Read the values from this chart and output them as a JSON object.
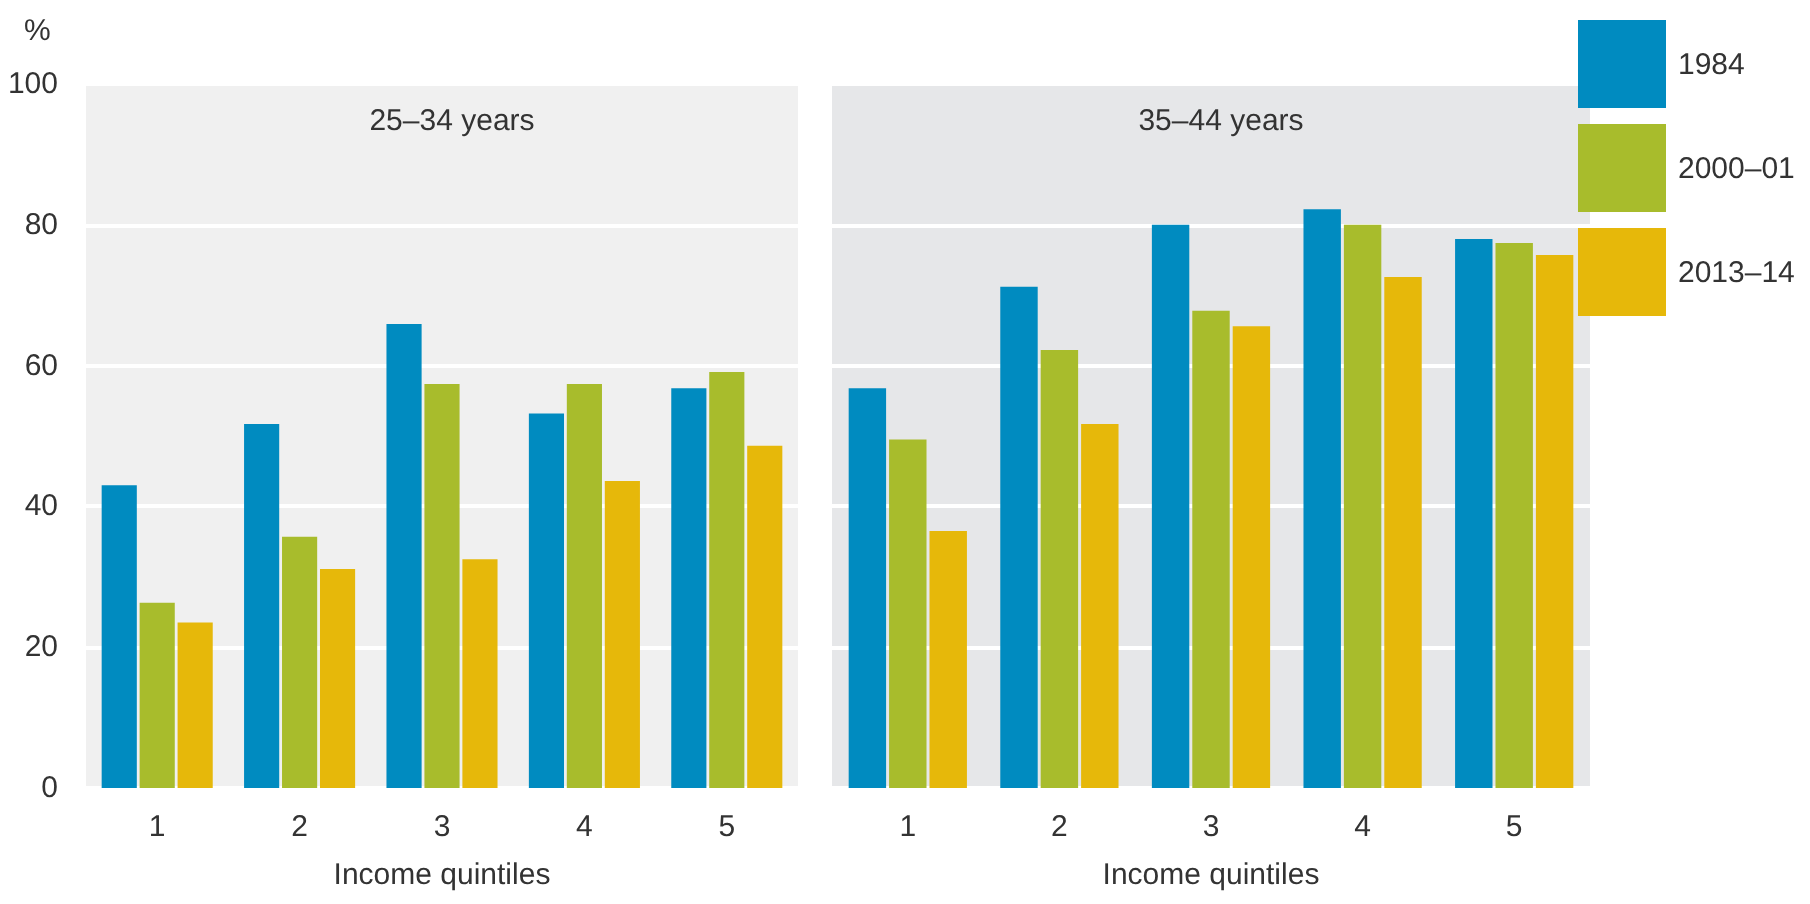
{
  "chart_data": [
    {
      "type": "bar",
      "title": "25–34 years",
      "xlabel": "Income quintiles",
      "ylabel": "%",
      "categories": [
        "1",
        "2",
        "3",
        "4",
        "5"
      ],
      "ylim": [
        0,
        100
      ],
      "yticks": [
        0,
        20,
        40,
        60,
        80,
        100
      ],
      "grid": "y",
      "legend": false,
      "series": [
        {
          "color": "#008bc0",
          "values": [
            43.0,
            51.7,
            65.9,
            53.2,
            56.8
          ]
        },
        {
          "color": "#a8bc2c",
          "values": [
            26.3,
            35.7,
            57.4,
            57.4,
            59.1
          ]
        },
        {
          "color": "#e6b80a",
          "values": [
            23.5,
            31.1,
            32.5,
            43.6,
            48.6
          ]
        }
      ]
    },
    {
      "type": "bar",
      "title": "35–44 years",
      "xlabel": "Income quintiles",
      "categories": [
        "1",
        "2",
        "3",
        "4",
        "5"
      ],
      "ylim": [
        0,
        100
      ],
      "yticks": [
        0,
        20,
        40,
        60,
        80,
        100
      ],
      "grid": "y",
      "legend": "right",
      "tick_labels": "x",
      "series": [
        {
          "name": "1984",
          "color": "#008bc0",
          "values": [
            56.8,
            71.2,
            80.0,
            82.2,
            78.0
          ]
        },
        {
          "name": "2000–01",
          "color": "#a8bc2c",
          "values": [
            49.5,
            62.2,
            67.8,
            80.0,
            77.4
          ]
        },
        {
          "name": "2013–14",
          "color": "#e6b80a",
          "values": [
            36.5,
            51.7,
            65.6,
            72.6,
            75.7
          ]
        }
      ]
    }
  ]
}
